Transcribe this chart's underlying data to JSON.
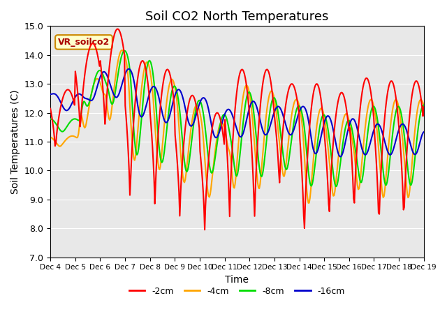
{
  "title": "Soil CO2 North Temperatures",
  "ylabel": "Soil Temperatures (C)",
  "xlabel": "Time",
  "annotation": "VR_soilco2",
  "ylim": [
    7.0,
    15.0
  ],
  "yticks": [
    7.0,
    8.0,
    9.0,
    10.0,
    11.0,
    12.0,
    13.0,
    14.0,
    15.0
  ],
  "xtick_labels": [
    "Dec 4",
    "Dec 5",
    "Dec 6",
    "Dec 7",
    "Dec 8",
    "Dec 9",
    "Dec 10",
    "Dec 11",
    "Dec 12",
    "Dec 13",
    "Dec 14",
    "Dec 15",
    "Dec 16",
    "Dec 17",
    "Dec 18",
    "Dec 19"
  ],
  "colors": {
    "-2cm": "#FF0000",
    "-4cm": "#FFA500",
    "-8cm": "#00DD00",
    "-16cm": "#0000CC"
  },
  "legend_labels": [
    "-2cm",
    "-4cm",
    "-8cm",
    "-16cm"
  ],
  "background_color": "#E8E8E8",
  "title_fontsize": 13,
  "label_fontsize": 10,
  "tick_fontsize": 9,
  "n_points": 480
}
